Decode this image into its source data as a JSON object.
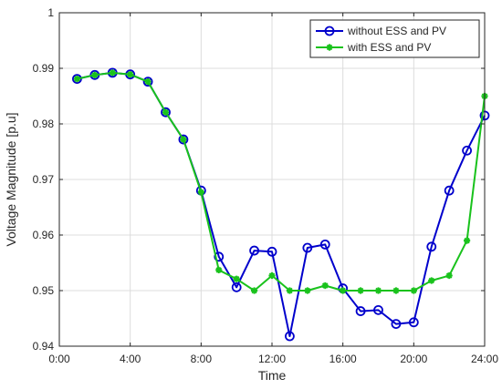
{
  "chart_data": {
    "type": "line",
    "title": "",
    "xlabel": "Time",
    "ylabel": "Voltage Magnitude [p.u]",
    "xlim": [
      0,
      24
    ],
    "ylim": [
      0.94,
      1.0
    ],
    "x_ticks": [
      0,
      4,
      8,
      12,
      16,
      20,
      24
    ],
    "x_tick_labels": [
      "0:00",
      "4:00",
      "8:00",
      "12:00",
      "16:00",
      "20:00",
      "24:00"
    ],
    "y_ticks": [
      0.94,
      0.95,
      0.96,
      0.97,
      0.98,
      0.99,
      1.0
    ],
    "y_tick_labels": [
      "0.94",
      "0.95",
      "0.96",
      "0.97",
      "0.98",
      "0.99",
      "1"
    ],
    "grid": true,
    "legend_position": "top-right",
    "x": [
      1,
      2,
      3,
      4,
      5,
      6,
      7,
      8,
      9,
      10,
      11,
      12,
      13,
      14,
      15,
      16,
      17,
      18,
      19,
      20,
      21,
      22,
      23,
      24
    ],
    "series": [
      {
        "name": "without ESS and PV",
        "color": "#0000cc",
        "marker": "circle",
        "values": [
          0.9881,
          0.9888,
          0.9892,
          0.9889,
          0.9876,
          0.9821,
          0.9772,
          0.968,
          0.9561,
          0.9506,
          0.9572,
          0.957,
          0.9418,
          0.9577,
          0.9583,
          0.9504,
          0.9463,
          0.9465,
          0.944,
          0.9443,
          0.9579,
          0.968,
          0.9752,
          0.9815
        ]
      },
      {
        "name": "with ESS and PV",
        "color": "#19c21c",
        "marker": "star",
        "values": [
          0.9881,
          0.9888,
          0.9892,
          0.9889,
          0.9876,
          0.9821,
          0.9772,
          0.9677,
          0.9537,
          0.9521,
          0.95,
          0.9527,
          0.95,
          0.95,
          0.9509,
          0.95,
          0.95,
          0.95,
          0.95,
          0.95,
          0.9518,
          0.9527,
          0.959,
          0.985
        ]
      }
    ]
  }
}
